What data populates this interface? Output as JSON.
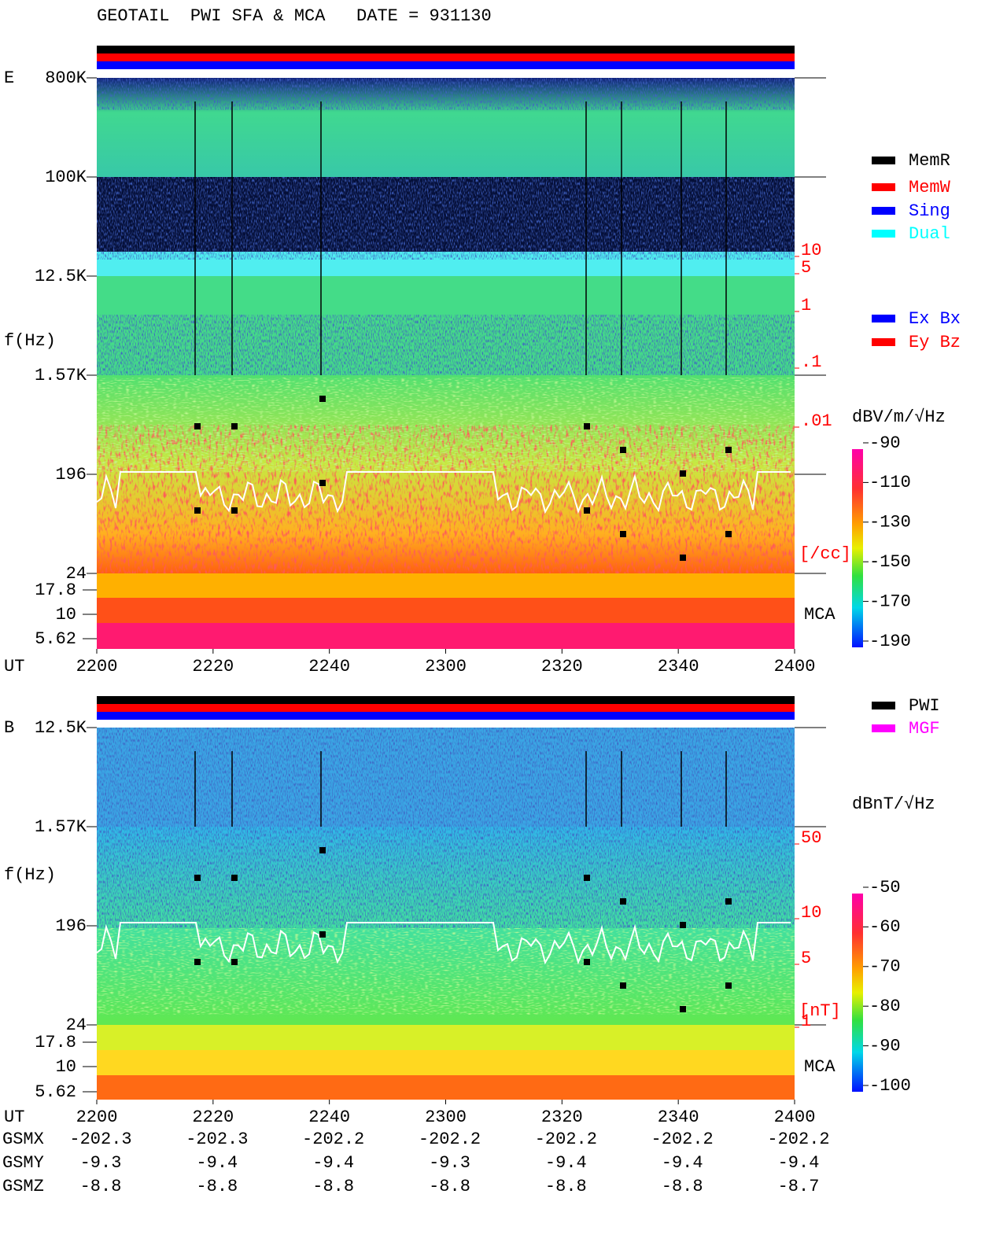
{
  "title": "GEOTAIL  PWI SFA & MCA   DATE = 931130",
  "panels": [
    {
      "label": "E",
      "y_axis_label": "f(Hz)",
      "y_ticks": [
        "800K",
        "100K",
        "12.5K",
        "1.57K",
        "196",
        "24"
      ],
      "mca_ticks": [
        "17.8",
        "10",
        "5.62"
      ],
      "mca_label": "MCA",
      "x_axis_label": "UT",
      "x_ticks": [
        "2200",
        "2220",
        "2240",
        "2300",
        "2320",
        "2340",
        "2400"
      ],
      "right_axis": {
        "labels": [
          "10",
          "5",
          "1",
          ".1",
          ".01"
        ],
        "unit": "[/cc]"
      },
      "legend": [
        {
          "name": "MemR",
          "color": "#000000"
        },
        {
          "name": "MemW",
          "color": "#ff0000"
        },
        {
          "name": "Sing",
          "color": "#0000ff"
        },
        {
          "name": "Dual",
          "color": "#00ffff"
        }
      ],
      "legend2": [
        {
          "name": "Ex Bx",
          "color": "#0000ff"
        },
        {
          "name": "Ey Bz",
          "color": "#ff0000"
        }
      ],
      "colorbar": {
        "label": "dBV/m/√Hz",
        "ticks": [
          -90,
          -110,
          -130,
          -150,
          -170,
          -190
        ]
      }
    },
    {
      "label": "B",
      "y_axis_label": "f(Hz)",
      "y_ticks": [
        "12.5K",
        "1.57K",
        "196",
        "24"
      ],
      "mca_ticks": [
        "17.8",
        "10",
        "5.62"
      ],
      "mca_label": "MCA",
      "x_axis_label": "UT",
      "x_ticks": [
        "2200",
        "2220",
        "2240",
        "2300",
        "2320",
        "2340",
        "2400"
      ],
      "right_axis": {
        "labels": [
          "50",
          "10",
          "5",
          "1"
        ],
        "unit": "[nT]"
      },
      "legend": [
        {
          "name": "PWI",
          "color": "#000000"
        },
        {
          "name": "MGF",
          "color": "#ff00ff"
        }
      ],
      "legend2": [],
      "colorbar": {
        "label": "dBnT/√Hz",
        "ticks": [
          -50,
          -60,
          -70,
          -80,
          -90,
          -100
        ]
      }
    }
  ],
  "orbit": {
    "rows": [
      {
        "label": "GSMX",
        "values": [
          -202.3,
          -202.3,
          -202.2,
          -202.2,
          -202.2,
          -202.2,
          -202.2
        ]
      },
      {
        "label": "GSMY",
        "values": [
          -9.3,
          -9.4,
          -9.4,
          -9.3,
          -9.4,
          -9.4,
          -9.4
        ]
      },
      {
        "label": "GSMZ",
        "values": [
          -8.8,
          -8.8,
          -8.8,
          -8.8,
          -8.8,
          -8.8,
          -8.7
        ]
      }
    ]
  }
}
